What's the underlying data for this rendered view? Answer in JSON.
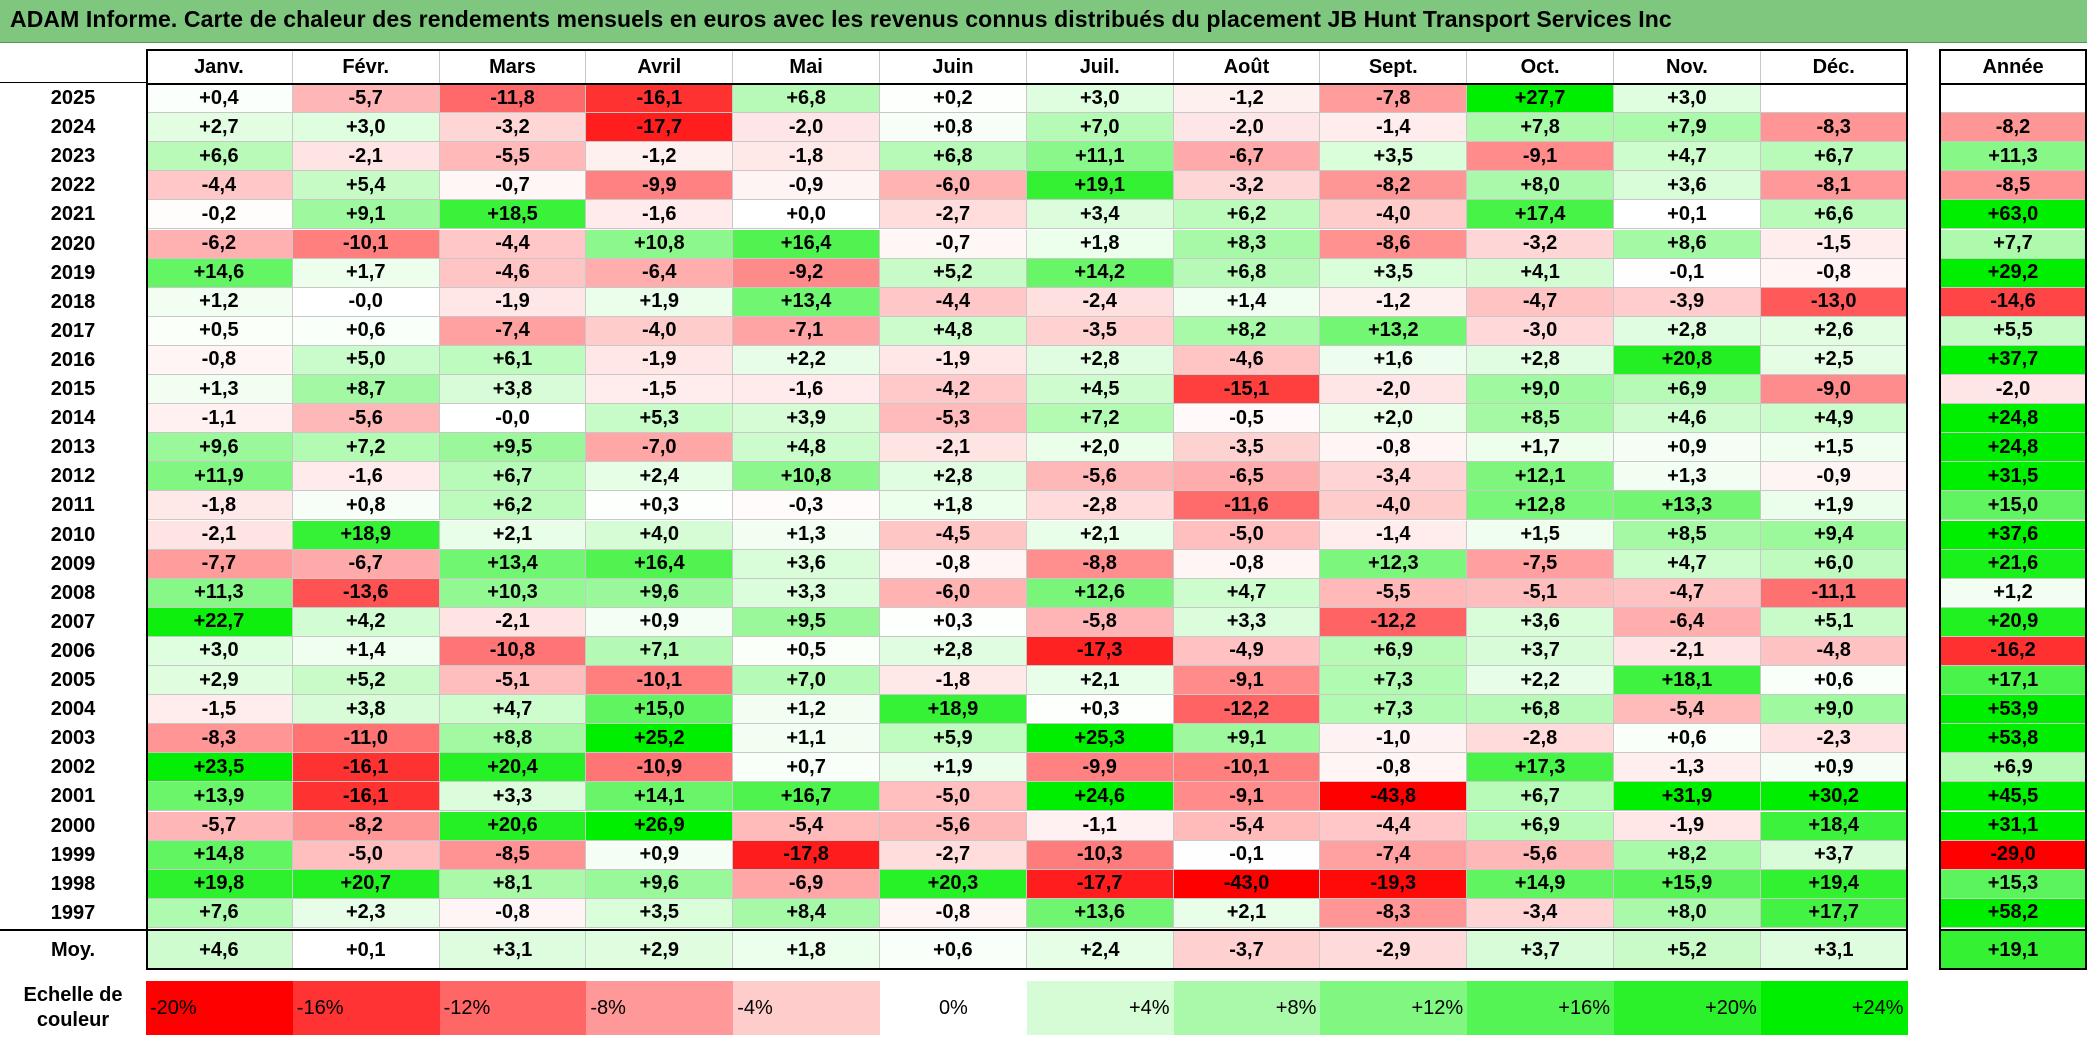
{
  "title": "ADAM Informe. Carte de chaleur des rendements mensuels en euros avec les revenus connus distribués du placement JB Hunt Transport Services Inc",
  "colors": {
    "title_bar": "#7fc77f",
    "negative_max": "#ff0000",
    "zero": "#ffffff",
    "positive_max": "#00ee00"
  },
  "chart_data": {
    "type": "heatmap",
    "months": [
      "Janv.",
      "Févr.",
      "Mars",
      "Avril",
      "Mai",
      "Juin",
      "Juil.",
      "Août",
      "Sept.",
      "Oct.",
      "Nov.",
      "Déc."
    ],
    "year_header": "Année",
    "years": [
      "2025",
      "2024",
      "2023",
      "2022",
      "2021",
      "2020",
      "2019",
      "2018",
      "2017",
      "2016",
      "2015",
      "2014",
      "2013",
      "2012",
      "2011",
      "2010",
      "2009",
      "2008",
      "2007",
      "2006",
      "2005",
      "2004",
      "2003",
      "2002",
      "2001",
      "2000",
      "1999",
      "1998",
      "1997"
    ],
    "values": [
      [
        0.4,
        -5.7,
        -11.8,
        -16.1,
        6.8,
        0.2,
        3.0,
        -1.2,
        -7.8,
        27.7,
        3.0,
        null
      ],
      [
        2.7,
        3.0,
        -3.2,
        -17.7,
        -2.0,
        0.8,
        7.0,
        -2.0,
        -1.4,
        7.8,
        7.9,
        -8.3
      ],
      [
        6.6,
        -2.1,
        -5.5,
        -1.2,
        -1.8,
        6.8,
        11.1,
        -6.7,
        3.5,
        -9.1,
        4.7,
        6.7
      ],
      [
        -4.4,
        5.4,
        -0.7,
        -9.9,
        -0.9,
        -6.0,
        19.1,
        -3.2,
        -8.2,
        8.0,
        3.6,
        -8.1
      ],
      [
        -0.2,
        9.1,
        18.5,
        -1.6,
        0.0,
        -2.7,
        3.4,
        6.2,
        -4.0,
        17.4,
        0.1,
        6.6
      ],
      [
        -6.2,
        -10.1,
        -4.4,
        10.8,
        16.4,
        -0.7,
        1.8,
        8.3,
        -8.6,
        -3.2,
        8.6,
        -1.5
      ],
      [
        14.6,
        1.7,
        -4.6,
        -6.4,
        -9.2,
        5.2,
        14.2,
        6.8,
        3.5,
        4.1,
        -0.1,
        -0.8
      ],
      [
        1.2,
        -0.0,
        -1.9,
        1.9,
        13.4,
        -4.4,
        -2.4,
        1.4,
        -1.2,
        -4.7,
        -3.9,
        -13.0
      ],
      [
        0.5,
        0.6,
        -7.4,
        -4.0,
        -7.1,
        4.8,
        -3.5,
        8.2,
        13.2,
        -3.0,
        2.8,
        2.6
      ],
      [
        -0.8,
        5.0,
        6.1,
        -1.9,
        2.2,
        -1.9,
        2.8,
        -4.6,
        1.6,
        2.8,
        20.8,
        2.5
      ],
      [
        1.3,
        8.7,
        3.8,
        -1.5,
        -1.6,
        -4.2,
        4.5,
        -15.1,
        -2.0,
        9.0,
        6.9,
        -9.0
      ],
      [
        -1.1,
        -5.6,
        -0.0,
        5.3,
        3.9,
        -5.3,
        7.2,
        -0.5,
        2.0,
        8.5,
        4.6,
        4.9
      ],
      [
        9.6,
        7.2,
        9.5,
        -7.0,
        4.8,
        -2.1,
        2.0,
        -3.5,
        -0.8,
        1.7,
        0.9,
        1.5
      ],
      [
        11.9,
        -1.6,
        6.7,
        2.4,
        10.8,
        2.8,
        -5.6,
        -6.5,
        -3.4,
        12.1,
        1.3,
        -0.9
      ],
      [
        -1.8,
        0.8,
        6.2,
        0.3,
        -0.3,
        1.8,
        -2.8,
        -11.6,
        -4.0,
        12.8,
        13.3,
        1.9
      ],
      [
        -2.1,
        18.9,
        2.1,
        4.0,
        1.3,
        -4.5,
        2.1,
        -5.0,
        -1.4,
        1.5,
        8.5,
        9.4
      ],
      [
        -7.7,
        -6.7,
        13.4,
        16.4,
        3.6,
        -0.8,
        -8.8,
        -0.8,
        12.3,
        -7.5,
        4.7,
        6.0
      ],
      [
        11.3,
        -13.6,
        10.3,
        9.6,
        3.3,
        -6.0,
        12.6,
        4.7,
        -5.5,
        -5.1,
        -4.7,
        -11.1
      ],
      [
        22.7,
        4.2,
        -2.1,
        0.9,
        9.5,
        0.3,
        -5.8,
        3.3,
        -12.2,
        3.6,
        -6.4,
        5.1
      ],
      [
        3.0,
        1.4,
        -10.8,
        7.1,
        0.5,
        2.8,
        -17.3,
        -4.9,
        6.9,
        3.7,
        -2.1,
        -4.8
      ],
      [
        2.9,
        5.2,
        -5.1,
        -10.1,
        7.0,
        -1.8,
        2.1,
        -9.1,
        7.3,
        2.2,
        18.1,
        0.6
      ],
      [
        -1.5,
        3.8,
        4.7,
        15.0,
        1.2,
        18.9,
        0.3,
        -12.2,
        7.3,
        6.8,
        -5.4,
        9.0
      ],
      [
        -8.3,
        -11.0,
        8.8,
        25.2,
        1.1,
        5.9,
        25.3,
        9.1,
        -1.0,
        -2.8,
        0.6,
        -2.3
      ],
      [
        23.5,
        -16.1,
        20.4,
        -10.9,
        0.7,
        1.9,
        -9.9,
        -10.1,
        -0.8,
        17.3,
        -1.3,
        0.9
      ],
      [
        13.9,
        -16.1,
        3.3,
        14.1,
        16.7,
        -5.0,
        24.6,
        -9.1,
        -43.8,
        6.7,
        31.9,
        30.2
      ],
      [
        -5.7,
        -8.2,
        20.6,
        26.9,
        -5.4,
        -5.6,
        -1.1,
        -5.4,
        -4.4,
        6.9,
        -1.9,
        18.4
      ],
      [
        14.8,
        -5.0,
        -8.5,
        0.9,
        -17.8,
        -2.7,
        -10.3,
        -0.1,
        -7.4,
        -5.6,
        8.2,
        3.7
      ],
      [
        19.8,
        20.7,
        8.1,
        9.6,
        -6.9,
        20.3,
        -17.7,
        -43.0,
        -19.3,
        14.9,
        15.9,
        19.4
      ],
      [
        7.6,
        2.3,
        -0.8,
        3.5,
        8.4,
        -0.8,
        13.6,
        2.1,
        -8.3,
        -3.4,
        8.0,
        17.7
      ]
    ],
    "annual": [
      null,
      -8.2,
      11.3,
      -8.5,
      63.0,
      7.7,
      29.2,
      -14.6,
      5.5,
      37.7,
      -2.0,
      24.8,
      24.8,
      31.5,
      15.0,
      37.6,
      21.6,
      1.2,
      20.9,
      -16.2,
      17.1,
      53.9,
      53.8,
      6.9,
      45.5,
      31.1,
      -29.0,
      15.3,
      58.2
    ],
    "average_label": "Moy.",
    "average": [
      4.6,
      0.1,
      3.1,
      2.9,
      1.8,
      0.6,
      2.4,
      -3.7,
      -2.9,
      3.7,
      5.2,
      3.1
    ],
    "average_annual": 19.1,
    "scale_label": "Echelle de couleur",
    "scale_ticks": [
      "-20%",
      "-16%",
      "-12%",
      "-8%",
      "-4%",
      "0%",
      "+4%",
      "+8%",
      "+12%",
      "+16%",
      "+20%",
      "+24%"
    ],
    "scale_values": [
      -20,
      -16,
      -12,
      -8,
      -4,
      0,
      4,
      8,
      12,
      16,
      20,
      24
    ]
  }
}
